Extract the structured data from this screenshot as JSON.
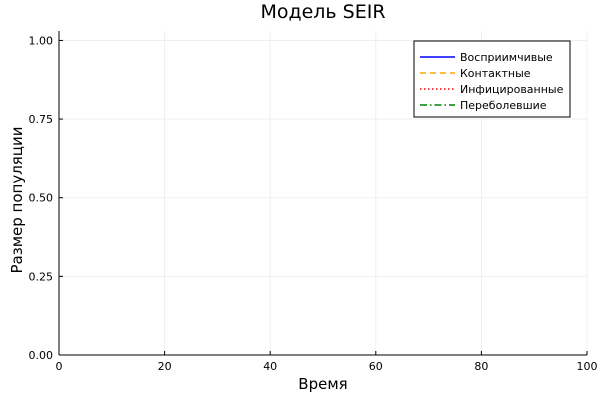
{
  "chart_data": {
    "type": "line",
    "title": "Модель SEIR",
    "xlabel": "Время",
    "ylabel": "Размер популяции",
    "xlim": [
      0,
      100
    ],
    "ylim": [
      0,
      1.0
    ],
    "ylim_display": [
      0,
      1.03
    ],
    "xticks": [
      0,
      20,
      40,
      60,
      80,
      100
    ],
    "xtick_labels": [
      "0",
      "20",
      "40",
      "60",
      "80",
      "100"
    ],
    "yticks": [
      0,
      0.25,
      0.5,
      0.75,
      1.0
    ],
    "ytick_labels": [
      "0.00",
      "0.25",
      "0.50",
      "0.75",
      "1.00"
    ],
    "grid": true,
    "legend_position": "top-right",
    "series": [
      {
        "name": "Восприимчивые",
        "color": "#0000ff",
        "dash": "solid",
        "x": [],
        "y": []
      },
      {
        "name": "Контактные",
        "color": "#ffa500",
        "dash": "dashed",
        "x": [],
        "y": []
      },
      {
        "name": "Инфицированные",
        "color": "#ff0000",
        "dash": "dotted",
        "x": [],
        "y": []
      },
      {
        "name": "Переболевшие",
        "color": "#008000",
        "dash": "dashdot",
        "x": [],
        "y": []
      }
    ]
  }
}
